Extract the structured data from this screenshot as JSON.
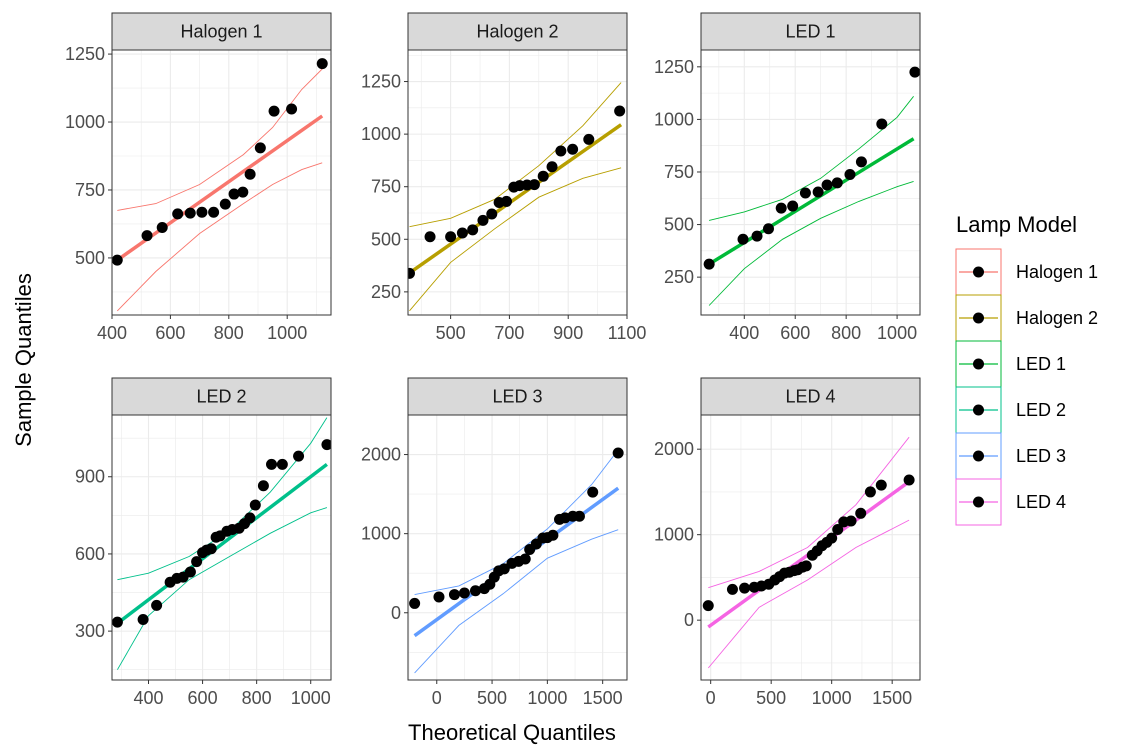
{
  "chart_data": {
    "type": "scatter",
    "subtype": "qq-plot-facets",
    "xlabel": "Theoretical Quantiles",
    "ylabel": "Sample Quantiles",
    "legend_title": "Lamp Model",
    "legend_position": "right",
    "grid": true,
    "series": [
      {
        "name": "Halogen 1",
        "color": "#F8766D",
        "xlim": [
          400,
          1150
        ],
        "ylim": [
          290,
          1265
        ],
        "x_ticks": [
          400,
          600,
          800,
          1000
        ],
        "y_ticks": [
          500,
          750,
          1000,
          1250
        ],
        "points": [
          [
            418,
            492
          ],
          [
            520,
            582
          ],
          [
            572,
            612
          ],
          [
            625,
            662
          ],
          [
            668,
            665
          ],
          [
            708,
            668
          ],
          [
            748,
            668
          ],
          [
            788,
            698
          ],
          [
            818,
            735
          ],
          [
            848,
            742
          ],
          [
            873,
            808
          ],
          [
            908,
            905
          ],
          [
            955,
            1040
          ],
          [
            1015,
            1048
          ],
          [
            1120,
            1215
          ]
        ],
        "line": [
          [
            418,
            492
          ],
          [
            1120,
            1022
          ]
        ],
        "band_upper": [
          [
            418,
            675
          ],
          [
            550,
            700
          ],
          [
            700,
            770
          ],
          [
            850,
            880
          ],
          [
            950,
            980
          ],
          [
            1050,
            1120
          ],
          [
            1120,
            1195
          ]
        ],
        "band_lower": [
          [
            418,
            305
          ],
          [
            550,
            450
          ],
          [
            700,
            590
          ],
          [
            850,
            700
          ],
          [
            950,
            770
          ],
          [
            1050,
            825
          ],
          [
            1120,
            850
          ]
        ]
      },
      {
        "name": "Halogen 2",
        "color": "#B79F00",
        "xlim": [
          355,
          1100
        ],
        "ylim": [
          140,
          1400
        ],
        "x_ticks": [
          500,
          700,
          900,
          1100
        ],
        "y_ticks": [
          250,
          500,
          750,
          1000,
          1250
        ],
        "points": [
          [
            360,
            338
          ],
          [
            430,
            512
          ],
          [
            500,
            512
          ],
          [
            540,
            530
          ],
          [
            575,
            545
          ],
          [
            610,
            590
          ],
          [
            640,
            620
          ],
          [
            665,
            675
          ],
          [
            690,
            680
          ],
          [
            715,
            748
          ],
          [
            735,
            755
          ],
          [
            760,
            758
          ],
          [
            785,
            760
          ],
          [
            815,
            800
          ],
          [
            845,
            845
          ],
          [
            875,
            920
          ],
          [
            915,
            928
          ],
          [
            970,
            975
          ],
          [
            1075,
            1110
          ]
        ],
        "line": [
          [
            360,
            340
          ],
          [
            1080,
            1045
          ]
        ],
        "band_upper": [
          [
            360,
            560
          ],
          [
            500,
            600
          ],
          [
            650,
            690
          ],
          [
            800,
            850
          ],
          [
            950,
            1040
          ],
          [
            1080,
            1245
          ]
        ],
        "band_lower": [
          [
            360,
            160
          ],
          [
            500,
            390
          ],
          [
            650,
            550
          ],
          [
            800,
            700
          ],
          [
            950,
            790
          ],
          [
            1080,
            840
          ]
        ]
      },
      {
        "name": "LED 1",
        "color": "#00BA38",
        "xlim": [
          230,
          1090
        ],
        "ylim": [
          70,
          1330
        ],
        "x_ticks": [
          400,
          600,
          800,
          1000
        ],
        "y_ticks": [
          250,
          500,
          750,
          1000,
          1250
        ],
        "points": [
          [
            262,
            312
          ],
          [
            395,
            430
          ],
          [
            450,
            445
          ],
          [
            495,
            480
          ],
          [
            545,
            578
          ],
          [
            590,
            588
          ],
          [
            640,
            650
          ],
          [
            690,
            655
          ],
          [
            725,
            688
          ],
          [
            765,
            698
          ],
          [
            815,
            738
          ],
          [
            860,
            798
          ],
          [
            940,
            978
          ],
          [
            1070,
            1225
          ]
        ],
        "line": [
          [
            262,
            312
          ],
          [
            1065,
            908
          ]
        ],
        "band_upper": [
          [
            262,
            520
          ],
          [
            400,
            560
          ],
          [
            550,
            620
          ],
          [
            700,
            720
          ],
          [
            850,
            860
          ],
          [
            1000,
            1010
          ],
          [
            1065,
            1110
          ]
        ],
        "band_lower": [
          [
            262,
            115
          ],
          [
            400,
            290
          ],
          [
            550,
            430
          ],
          [
            700,
            530
          ],
          [
            850,
            610
          ],
          [
            1000,
            680
          ],
          [
            1065,
            705
          ]
        ]
      },
      {
        "name": "LED 2",
        "color": "#00C08B",
        "xlim": [
          265,
          1075
        ],
        "ylim": [
          110,
          1140
        ],
        "x_ticks": [
          400,
          600,
          800,
          1000
        ],
        "y_ticks": [
          300,
          600,
          900
        ],
        "points": [
          [
            285,
            335
          ],
          [
            380,
            345
          ],
          [
            430,
            400
          ],
          [
            480,
            490
          ],
          [
            505,
            505
          ],
          [
            528,
            510
          ],
          [
            555,
            530
          ],
          [
            578,
            570
          ],
          [
            600,
            605
          ],
          [
            615,
            615
          ],
          [
            632,
            620
          ],
          [
            650,
            665
          ],
          [
            665,
            670
          ],
          [
            690,
            688
          ],
          [
            710,
            695
          ],
          [
            735,
            700
          ],
          [
            755,
            718
          ],
          [
            775,
            740
          ],
          [
            795,
            790
          ],
          [
            825,
            865
          ],
          [
            855,
            948
          ],
          [
            895,
            948
          ],
          [
            955,
            980
          ],
          [
            1060,
            1025
          ]
        ],
        "line": [
          [
            285,
            330
          ],
          [
            1060,
            948
          ]
        ],
        "band_upper": [
          [
            285,
            500
          ],
          [
            400,
            525
          ],
          [
            550,
            590
          ],
          [
            700,
            690
          ],
          [
            850,
            840
          ],
          [
            1000,
            1030
          ],
          [
            1060,
            1130
          ]
        ],
        "band_lower": [
          [
            285,
            150
          ],
          [
            400,
            360
          ],
          [
            550,
            500
          ],
          [
            700,
            590
          ],
          [
            850,
            680
          ],
          [
            1000,
            760
          ],
          [
            1060,
            780
          ]
        ]
      },
      {
        "name": "LED 3",
        "color": "#619CFF",
        "xlim": [
          -260,
          1720
        ],
        "ylim": [
          -850,
          2500
        ],
        "x_ticks": [
          0,
          500,
          1000,
          1500
        ],
        "y_ticks": [
          0,
          1000,
          2000
        ],
        "points": [
          [
            -200,
            118
          ],
          [
            20,
            200
          ],
          [
            160,
            230
          ],
          [
            250,
            250
          ],
          [
            350,
            278
          ],
          [
            430,
            305
          ],
          [
            480,
            360
          ],
          [
            520,
            450
          ],
          [
            560,
            530
          ],
          [
            610,
            555
          ],
          [
            680,
            625
          ],
          [
            740,
            650
          ],
          [
            800,
            680
          ],
          [
            840,
            800
          ],
          [
            900,
            870
          ],
          [
            960,
            945
          ],
          [
            1000,
            950
          ],
          [
            1050,
            980
          ],
          [
            1110,
            1180
          ],
          [
            1160,
            1200
          ],
          [
            1230,
            1220
          ],
          [
            1290,
            1220
          ],
          [
            1410,
            1525
          ],
          [
            1640,
            2020
          ]
        ],
        "line": [
          [
            -200,
            -290
          ],
          [
            1640,
            1575
          ]
        ],
        "band_upper": [
          [
            -200,
            230
          ],
          [
            200,
            340
          ],
          [
            600,
            620
          ],
          [
            1000,
            1060
          ],
          [
            1400,
            1620
          ],
          [
            1640,
            2060
          ]
        ],
        "band_lower": [
          [
            -200,
            -760
          ],
          [
            200,
            -160
          ],
          [
            600,
            240
          ],
          [
            1000,
            690
          ],
          [
            1400,
            930
          ],
          [
            1640,
            1050
          ]
        ]
      },
      {
        "name": "LED 4",
        "color": "#F564E3",
        "xlim": [
          -80,
          1730
        ],
        "ylim": [
          -700,
          2400
        ],
        "x_ticks": [
          0,
          500,
          1000,
          1500
        ],
        "y_ticks": [
          0,
          1000,
          2000
        ],
        "points": [
          [
            -20,
            170
          ],
          [
            180,
            360
          ],
          [
            280,
            375
          ],
          [
            360,
            385
          ],
          [
            420,
            400
          ],
          [
            480,
            420
          ],
          [
            530,
            470
          ],
          [
            570,
            510
          ],
          [
            610,
            550
          ],
          [
            650,
            560
          ],
          [
            690,
            580
          ],
          [
            720,
            590
          ],
          [
            760,
            620
          ],
          [
            790,
            635
          ],
          [
            840,
            760
          ],
          [
            880,
            810
          ],
          [
            920,
            870
          ],
          [
            960,
            910
          ],
          [
            1000,
            960
          ],
          [
            1050,
            1060
          ],
          [
            1100,
            1150
          ],
          [
            1160,
            1160
          ],
          [
            1240,
            1250
          ],
          [
            1320,
            1500
          ],
          [
            1410,
            1580
          ],
          [
            1640,
            1640
          ]
        ],
        "line": [
          [
            -20,
            -80
          ],
          [
            1640,
            1620
          ]
        ],
        "band_upper": [
          [
            -20,
            380
          ],
          [
            400,
            570
          ],
          [
            800,
            850
          ],
          [
            1200,
            1350
          ],
          [
            1640,
            2140
          ]
        ],
        "band_lower": [
          [
            -20,
            -560
          ],
          [
            400,
            150
          ],
          [
            800,
            470
          ],
          [
            1200,
            850
          ],
          [
            1640,
            1170
          ]
        ]
      }
    ]
  }
}
